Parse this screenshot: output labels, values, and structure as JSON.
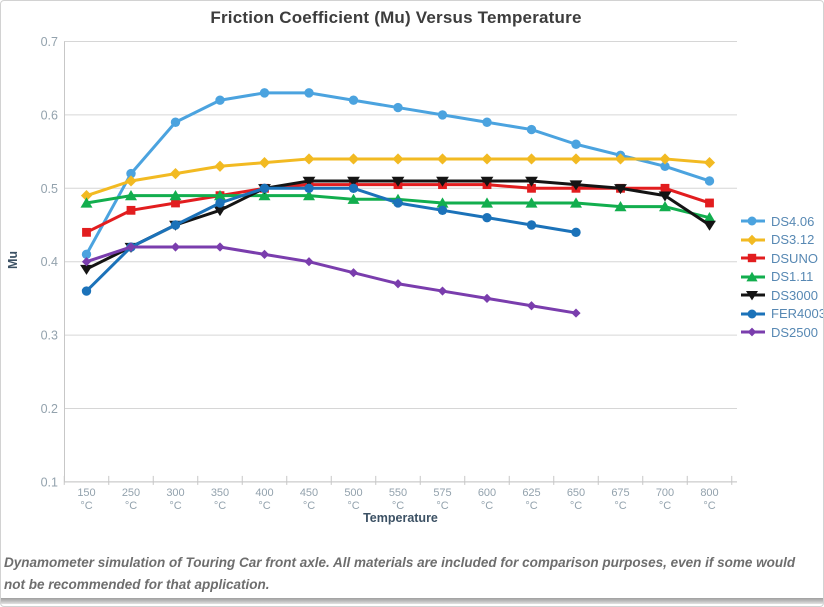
{
  "chart_data": {
    "type": "line",
    "title": "Friction Coefficient (Mu) Versus Temperature",
    "xlabel": "Temperature",
    "ylabel": "Mu",
    "ylim": [
      0.1,
      0.7
    ],
    "y_ticks": [
      "0.7",
      "0.6",
      "0.5",
      "0.4",
      "0.3",
      "0.2",
      "0.1"
    ],
    "grid": true,
    "legend_position": "right",
    "categories": [
      "150",
      "250",
      "300",
      "350",
      "400",
      "450",
      "500",
      "550",
      "575",
      "600",
      "625",
      "650",
      "675",
      "700",
      "800"
    ],
    "category_unit": "°C",
    "series": [
      {
        "name": "DS4.06",
        "color": "#4ba3df",
        "marker": "circle",
        "values": [
          0.41,
          0.52,
          0.59,
          0.62,
          0.63,
          0.63,
          0.62,
          0.61,
          0.6,
          0.59,
          0.58,
          0.56,
          0.545,
          0.53,
          0.51
        ]
      },
      {
        "name": "DS3.12",
        "color": "#f2ba22",
        "marker": "diamond",
        "values": [
          0.49,
          0.51,
          0.52,
          0.53,
          0.535,
          0.54,
          0.54,
          0.54,
          0.54,
          0.54,
          0.54,
          0.54,
          0.54,
          0.54,
          0.535
        ]
      },
      {
        "name": "DSUNO",
        "color": "#e21d1f",
        "marker": "square",
        "values": [
          0.44,
          0.47,
          0.48,
          0.49,
          0.5,
          0.505,
          0.505,
          0.505,
          0.505,
          0.505,
          0.5,
          0.5,
          0.5,
          0.5,
          0.48
        ]
      },
      {
        "name": "DS1.11",
        "color": "#12ae4e",
        "marker": "triangle-up",
        "values": [
          0.48,
          0.49,
          0.49,
          0.49,
          0.49,
          0.49,
          0.485,
          0.485,
          0.48,
          0.48,
          0.48,
          0.48,
          0.475,
          0.475,
          0.46
        ]
      },
      {
        "name": "DS3000",
        "color": "#141414",
        "marker": "triangle-down",
        "values": [
          0.39,
          0.42,
          0.45,
          0.47,
          0.5,
          0.51,
          0.51,
          0.51,
          0.51,
          0.51,
          0.51,
          0.505,
          0.5,
          0.49,
          0.45
        ]
      },
      {
        "name": "FER4003",
        "color": "#1b72b9",
        "marker": "circle",
        "values": [
          0.36,
          0.42,
          0.45,
          0.48,
          0.5,
          0.5,
          0.5,
          0.48,
          0.47,
          0.46,
          0.45,
          0.44,
          null,
          null,
          null
        ]
      },
      {
        "name": "DS2500",
        "color": "#7a3dad",
        "marker": "diamond-small",
        "values": [
          0.4,
          0.42,
          0.42,
          0.42,
          0.41,
          0.4,
          0.385,
          0.37,
          0.36,
          0.35,
          0.34,
          0.33,
          null,
          null,
          null
        ]
      }
    ],
    "axis_colors": {
      "tick_label": "#93a2ad",
      "grid_line": "#d6d6d6",
      "axis_line": "#c7c7c7",
      "legend_text": "#5788b3",
      "title_text": "#3d3d3d",
      "axis_title_text": "#3c5164"
    }
  },
  "footer": {
    "caption": "Dynamometer simulation of Touring Car front axle. All materials are included for comparison purposes, even if some would not be recommended for that application."
  }
}
